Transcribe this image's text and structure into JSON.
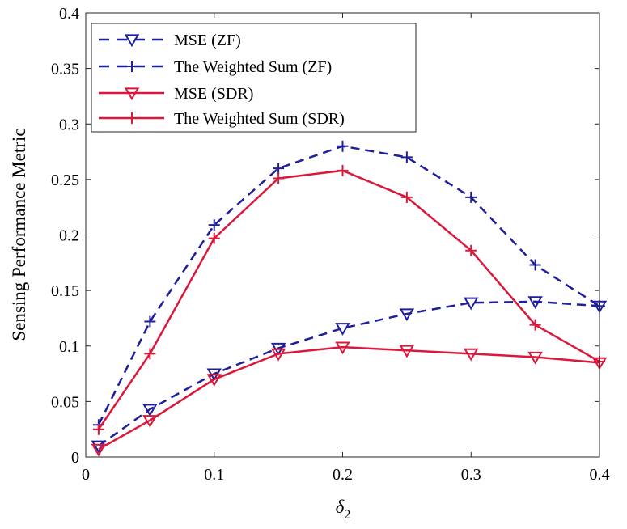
{
  "chart_data": {
    "type": "line",
    "xlabel": "δ",
    "xlabel_sub": "2",
    "ylabel": "Sensing Performance Metric",
    "xlim": [
      0,
      0.4
    ],
    "ylim": [
      0,
      0.4
    ],
    "x_ticks": [
      "0",
      "0.1",
      "0.2",
      "0.3",
      "0.4"
    ],
    "y_ticks": [
      "0",
      "0.05",
      "0.1",
      "0.15",
      "0.2",
      "0.25",
      "0.3",
      "0.35",
      "0.4"
    ],
    "x_tick_values": [
      0,
      0.1,
      0.2,
      0.3,
      0.4
    ],
    "y_tick_values": [
      0,
      0.05,
      0.1,
      0.15,
      0.2,
      0.25,
      0.3,
      0.35,
      0.4
    ],
    "grid": false,
    "legend_position": "top-left",
    "x": [
      0.01,
      0.05,
      0.1,
      0.15,
      0.2,
      0.25,
      0.3,
      0.35,
      0.4
    ],
    "series": [
      {
        "name": "MSE (ZF)",
        "color": "#1f1f9e",
        "line_style": "dashed",
        "marker": "triangle-down",
        "values": [
          0.01,
          0.043,
          0.075,
          0.098,
          0.116,
          0.129,
          0.139,
          0.14,
          0.136
        ]
      },
      {
        "name": "The Weighted Sum (ZF)",
        "color": "#1f1f9e",
        "line_style": "dashed",
        "marker": "plus",
        "values": [
          0.029,
          0.122,
          0.209,
          0.26,
          0.28,
          0.27,
          0.234,
          0.173,
          0.136
        ]
      },
      {
        "name": "MSE (SDR)",
        "color": "#d9183b",
        "line_style": "solid",
        "marker": "triangle-down",
        "values": [
          0.007,
          0.033,
          0.07,
          0.093,
          0.099,
          0.096,
          0.093,
          0.09,
          0.085
        ]
      },
      {
        "name": "The Weighted Sum (SDR)",
        "color": "#d9183b",
        "line_style": "solid",
        "marker": "plus",
        "values": [
          0.025,
          0.093,
          0.197,
          0.251,
          0.258,
          0.234,
          0.186,
          0.119,
          0.086
        ]
      }
    ]
  }
}
